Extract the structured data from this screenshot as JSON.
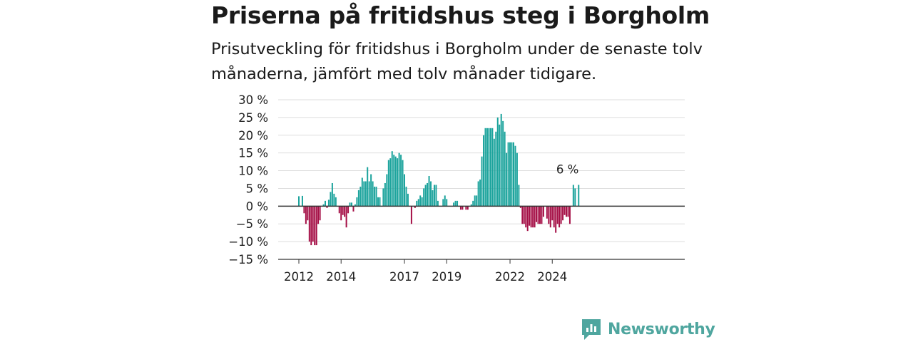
{
  "header": {
    "title": "Priserna på fritidshus steg i Borgholm",
    "subtitle": "Prisutveckling för fritidshus i Borgholm under de senaste tolv månaderna, jämfört med tolv månader tidigare."
  },
  "brand": {
    "name": "Newsworthy",
    "color": "#4fa69f"
  },
  "chart_data": {
    "type": "bar",
    "y_tick_labels": [
      "30 %",
      "25 %",
      "20 %",
      "15 %",
      "10 %",
      "5 %",
      "0 %",
      "−5 %",
      "−10 %",
      "−15 %"
    ],
    "y_ticks": [
      30,
      25,
      20,
      15,
      10,
      5,
      0,
      -5,
      -10,
      -15
    ],
    "ylim": [
      -15,
      30
    ],
    "x_tick_labels": [
      "2012",
      "2014",
      "2017",
      "2019",
      "2022",
      "2024"
    ],
    "x_ticks": [
      "2012-01",
      "2014-01",
      "2017-01",
      "2019-01",
      "2022-01",
      "2024-01"
    ],
    "x_start": "2012-01",
    "annotation": {
      "text": "6 %",
      "month": "2025-04",
      "value": 6
    },
    "colors": {
      "positive": "#1ba39c",
      "negative": "#a50f46",
      "grid": "#dddddd",
      "zero": "#333333"
    },
    "grid": true,
    "months": [
      "2012-01",
      "2012-02",
      "2012-03",
      "2012-04",
      "2012-05",
      "2012-06",
      "2012-07",
      "2012-08",
      "2012-09",
      "2012-10",
      "2012-11",
      "2012-12",
      "2013-01",
      "2013-02",
      "2013-03",
      "2013-04",
      "2013-05",
      "2013-06",
      "2013-07",
      "2013-08",
      "2013-09",
      "2013-10",
      "2013-11",
      "2013-12",
      "2014-01",
      "2014-02",
      "2014-03",
      "2014-04",
      "2014-05",
      "2014-06",
      "2014-07",
      "2014-08",
      "2014-09",
      "2014-10",
      "2014-11",
      "2014-12",
      "2015-01",
      "2015-02",
      "2015-03",
      "2015-04",
      "2015-05",
      "2015-06",
      "2015-07",
      "2015-08",
      "2015-09",
      "2015-10",
      "2015-11",
      "2015-12",
      "2016-01",
      "2016-02",
      "2016-03",
      "2016-04",
      "2016-05",
      "2016-06",
      "2016-07",
      "2016-08",
      "2016-09",
      "2016-10",
      "2016-11",
      "2016-12",
      "2017-01",
      "2017-02",
      "2017-03",
      "2017-04",
      "2017-05",
      "2017-06",
      "2017-07",
      "2017-08",
      "2017-09",
      "2017-10",
      "2017-11",
      "2017-12",
      "2018-01",
      "2018-02",
      "2018-03",
      "2018-04",
      "2018-05",
      "2018-06",
      "2018-07",
      "2018-08",
      "2018-09",
      "2018-10",
      "2018-11",
      "2018-12",
      "2019-01",
      "2019-02",
      "2019-03",
      "2019-04",
      "2019-05",
      "2019-06",
      "2019-07",
      "2019-08",
      "2019-09",
      "2019-10",
      "2019-11",
      "2019-12",
      "2020-01",
      "2020-02",
      "2020-03",
      "2020-04",
      "2020-05",
      "2020-06",
      "2020-07",
      "2020-08",
      "2020-09",
      "2020-10",
      "2020-11",
      "2020-12",
      "2021-01",
      "2021-02",
      "2021-03",
      "2021-04",
      "2021-05",
      "2021-06",
      "2021-07",
      "2021-08",
      "2021-09",
      "2021-10",
      "2021-11",
      "2021-12",
      "2022-01",
      "2022-02",
      "2022-03",
      "2022-04",
      "2022-05",
      "2022-06",
      "2022-07",
      "2022-08",
      "2022-09",
      "2022-10",
      "2022-11",
      "2022-12",
      "2023-01",
      "2023-02",
      "2023-03",
      "2023-04",
      "2023-05",
      "2023-06",
      "2023-07",
      "2023-08",
      "2023-09",
      "2023-10",
      "2023-11",
      "2023-12",
      "2024-01",
      "2024-02",
      "2024-03",
      "2024-04",
      "2024-05",
      "2024-06",
      "2024-07",
      "2024-08",
      "2024-09",
      "2024-10",
      "2024-11",
      "2024-12",
      "2025-01",
      "2025-02",
      "2025-03",
      "2025-04"
    ],
    "values": [
      2.8,
      0,
      2.9,
      -2,
      -5,
      -4,
      -10,
      -11,
      -10,
      -11,
      -11,
      -5,
      -4,
      0,
      0.5,
      1.5,
      -0.5,
      1.8,
      4,
      6.5,
      3.5,
      2.5,
      0,
      -2,
      -4,
      -2.5,
      -3,
      -6,
      -2,
      1,
      1,
      -1.5,
      0.5,
      2.5,
      4.5,
      5.5,
      8,
      7,
      7,
      11,
      7,
      9,
      7,
      5.5,
      5.5,
      2.5,
      2.5,
      0,
      5,
      6.5,
      9,
      13,
      13.5,
      15.5,
      14.5,
      14,
      13.5,
      15,
      14.5,
      13,
      9,
      5.5,
      3.5,
      0,
      -5,
      0,
      -0.5,
      1.5,
      2,
      3,
      2.5,
      5,
      6,
      6.5,
      8.5,
      7,
      4.5,
      6,
      6,
      1.5,
      0,
      0,
      2,
      3,
      2,
      0,
      0,
      0,
      1,
      1.5,
      1.5,
      0,
      -1,
      -1,
      0,
      -1,
      -1,
      0,
      0.5,
      1.5,
      3,
      3,
      7,
      7.5,
      14,
      20,
      22,
      22,
      22,
      22,
      22,
      19,
      21,
      25,
      23,
      26,
      24,
      21,
      15,
      18,
      18,
      18,
      18,
      17,
      15,
      6,
      -0.5,
      -5,
      -5,
      -6,
      -7,
      -5.5,
      -6,
      -6,
      -6,
      -4.5,
      -5,
      -5,
      -5,
      -3,
      0,
      -3.5,
      -5,
      -6,
      -4,
      -6,
      -7.5,
      -5,
      -6,
      -5,
      -4,
      -2.5,
      -3,
      -3,
      -5,
      0,
      6,
      5,
      0,
      6
    ]
  }
}
